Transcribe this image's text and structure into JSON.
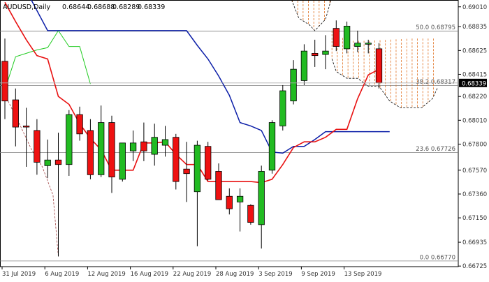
{
  "chart_data": {
    "type": "candlestick",
    "title": "AUDUSD,Daily",
    "ohlc_header": [
      "0.68644",
      "0.68688",
      "0.68289",
      "0.68339"
    ],
    "ylim": [
      0.6672,
      0.6907
    ],
    "y_ticks": [
      0.6901,
      0.68835,
      0.68625,
      0.68415,
      0.6822,
      0.6801,
      0.678,
      0.6757,
      0.6736,
      0.6715,
      0.66935,
      0.66725
    ],
    "y_tick_labels": [
      "0.69010",
      "0.68835",
      "0.68625",
      "0.68415",
      "0.68220",
      "0.68010",
      "0.67800",
      "0.67570",
      "0.67360",
      "0.67150",
      "0.66935",
      "0.66725"
    ],
    "x_tick_labels": [
      {
        "label": "31 Jul 2019",
        "index": 0
      },
      {
        "label": "6 Aug 2019",
        "index": 4
      },
      {
        "label": "12 Aug 2019",
        "index": 8
      },
      {
        "label": "16 Aug 2019",
        "index": 12
      },
      {
        "label": "22 Aug 2019",
        "index": 16
      },
      {
        "label": "28 Aug 2019",
        "index": 20
      },
      {
        "label": "3 Sep 2019",
        "index": 24
      },
      {
        "label": "9 Sep 2019",
        "index": 28
      },
      {
        "label": "13 Sep 2019",
        "index": 32
      }
    ],
    "candles": [
      {
        "o": 0.6853,
        "h": 0.6873,
        "l": 0.6802,
        "c": 0.6818
      },
      {
        "o": 0.6819,
        "h": 0.6829,
        "l": 0.6778,
        "c": 0.6795
      },
      {
        "o": 0.6796,
        "h": 0.6812,
        "l": 0.676,
        "c": 0.6795
      },
      {
        "o": 0.6792,
        "h": 0.6802,
        "l": 0.6753,
        "c": 0.6764
      },
      {
        "o": 0.6761,
        "h": 0.6784,
        "l": 0.675,
        "c": 0.6766
      },
      {
        "o": 0.6766,
        "h": 0.679,
        "l": 0.6681,
        "c": 0.6762
      },
      {
        "o": 0.6762,
        "h": 0.681,
        "l": 0.6752,
        "c": 0.6806
      },
      {
        "o": 0.6806,
        "h": 0.6813,
        "l": 0.6783,
        "c": 0.6789
      },
      {
        "o": 0.6792,
        "h": 0.6802,
        "l": 0.6749,
        "c": 0.6753
      },
      {
        "o": 0.6753,
        "h": 0.6814,
        "l": 0.6751,
        "c": 0.6799
      },
      {
        "o": 0.6799,
        "h": 0.6805,
        "l": 0.6737,
        "c": 0.6751
      },
      {
        "o": 0.6749,
        "h": 0.678,
        "l": 0.6747,
        "c": 0.6781
      },
      {
        "o": 0.6774,
        "h": 0.6792,
        "l": 0.6765,
        "c": 0.6781
      },
      {
        "o": 0.6782,
        "h": 0.6799,
        "l": 0.6765,
        "c": 0.6774
      },
      {
        "o": 0.6771,
        "h": 0.6798,
        "l": 0.6761,
        "c": 0.6786
      },
      {
        "o": 0.6779,
        "h": 0.6796,
        "l": 0.6769,
        "c": 0.6784
      },
      {
        "o": 0.6786,
        "h": 0.6789,
        "l": 0.674,
        "c": 0.6747
      },
      {
        "o": 0.6758,
        "h": 0.6782,
        "l": 0.6729,
        "c": 0.6754
      },
      {
        "o": 0.6738,
        "h": 0.6783,
        "l": 0.669,
        "c": 0.6779
      },
      {
        "o": 0.6778,
        "h": 0.6782,
        "l": 0.6748,
        "c": 0.6749
      },
      {
        "o": 0.6756,
        "h": 0.6763,
        "l": 0.6731,
        "c": 0.6731
      },
      {
        "o": 0.6734,
        "h": 0.6741,
        "l": 0.6718,
        "c": 0.6723
      },
      {
        "o": 0.6729,
        "h": 0.6741,
        "l": 0.6703,
        "c": 0.6734
      },
      {
        "o": 0.6726,
        "h": 0.6727,
        "l": 0.6709,
        "c": 0.6711
      },
      {
        "o": 0.6709,
        "h": 0.6761,
        "l": 0.6688,
        "c": 0.6756
      },
      {
        "o": 0.6757,
        "h": 0.6801,
        "l": 0.6754,
        "c": 0.6799
      },
      {
        "o": 0.6796,
        "h": 0.6832,
        "l": 0.6792,
        "c": 0.6827
      },
      {
        "o": 0.6818,
        "h": 0.6854,
        "l": 0.6815,
        "c": 0.6846
      },
      {
        "o": 0.6836,
        "h": 0.6868,
        "l": 0.6832,
        "c": 0.6862
      },
      {
        "o": 0.686,
        "h": 0.6872,
        "l": 0.6848,
        "c": 0.6858
      },
      {
        "o": 0.6859,
        "h": 0.6876,
        "l": 0.6846,
        "c": 0.6862
      },
      {
        "o": 0.6882,
        "h": 0.6889,
        "l": 0.6862,
        "c": 0.6866
      },
      {
        "o": 0.6864,
        "h": 0.6888,
        "l": 0.686,
        "c": 0.6884
      },
      {
        "o": 0.6866,
        "h": 0.688,
        "l": 0.6861,
        "c": 0.6869
      },
      {
        "o": 0.6868,
        "h": 0.6872,
        "l": 0.686,
        "c": 0.6869
      },
      {
        "o": 0.6864,
        "h": 0.6869,
        "l": 0.6829,
        "c": 0.6834
      }
    ],
    "red_line": [
      {
        "i": 0,
        "y": 0.6905
      },
      {
        "i": 1,
        "y": 0.6888
      },
      {
        "i": 2,
        "y": 0.6872
      },
      {
        "i": 3,
        "y": 0.6858
      },
      {
        "i": 4,
        "y": 0.6855
      },
      {
        "i": 5,
        "y": 0.6822
      },
      {
        "i": 6,
        "y": 0.6815
      },
      {
        "i": 7,
        "y": 0.6798
      },
      {
        "i": 8,
        "y": 0.6785
      },
      {
        "i": 9,
        "y": 0.6775
      },
      {
        "i": 10,
        "y": 0.6757
      },
      {
        "i": 11,
        "y": 0.6757
      },
      {
        "i": 12,
        "y": 0.6757
      },
      {
        "i": 13,
        "y": 0.6781
      },
      {
        "i": 14,
        "y": 0.6781
      },
      {
        "i": 15,
        "y": 0.6782
      },
      {
        "i": 16,
        "y": 0.6771
      },
      {
        "i": 17,
        "y": 0.6762
      },
      {
        "i": 18,
        "y": 0.6762
      },
      {
        "i": 19,
        "y": 0.6747
      },
      {
        "i": 20,
        "y": 0.6747
      },
      {
        "i": 21,
        "y": 0.6747
      },
      {
        "i": 22,
        "y": 0.6747
      },
      {
        "i": 23,
        "y": 0.6747
      },
      {
        "i": 24,
        "y": 0.6746
      },
      {
        "i": 25,
        "y": 0.6749
      },
      {
        "i": 26,
        "y": 0.6762
      },
      {
        "i": 27,
        "y": 0.6777
      },
      {
        "i": 28,
        "y": 0.6782
      },
      {
        "i": 29,
        "y": 0.6782
      },
      {
        "i": 30,
        "y": 0.6786
      },
      {
        "i": 31,
        "y": 0.6793
      },
      {
        "i": 32,
        "y": 0.6793
      },
      {
        "i": 33,
        "y": 0.682
      },
      {
        "i": 34,
        "y": 0.6841
      },
      {
        "i": 35,
        "y": 0.6846
      }
    ],
    "blue_line": [
      {
        "i": 2.3,
        "y": 0.691
      },
      {
        "i": 4,
        "y": 0.688
      },
      {
        "i": 8,
        "y": 0.688
      },
      {
        "i": 12,
        "y": 0.688
      },
      {
        "i": 16,
        "y": 0.688
      },
      {
        "i": 17,
        "y": 0.688
      },
      {
        "i": 18,
        "y": 0.6867
      },
      {
        "i": 19,
        "y": 0.6855
      },
      {
        "i": 20,
        "y": 0.684
      },
      {
        "i": 21,
        "y": 0.6823
      },
      {
        "i": 22,
        "y": 0.6799
      },
      {
        "i": 23,
        "y": 0.6796
      },
      {
        "i": 24,
        "y": 0.6792
      },
      {
        "i": 25,
        "y": 0.6773
      },
      {
        "i": 26,
        "y": 0.6772
      },
      {
        "i": 27,
        "y": 0.6778
      },
      {
        "i": 28,
        "y": 0.6778
      },
      {
        "i": 29,
        "y": 0.6784
      },
      {
        "i": 30,
        "y": 0.6791
      },
      {
        "i": 31,
        "y": 0.6791
      },
      {
        "i": 32,
        "y": 0.6791
      },
      {
        "i": 33,
        "y": 0.6791
      },
      {
        "i": 34,
        "y": 0.6791
      },
      {
        "i": 35,
        "y": 0.6791
      },
      {
        "i": 36,
        "y": 0.6791
      }
    ],
    "green_line": [
      {
        "i": -0.2,
        "y": 0.6822
      },
      {
        "i": 1,
        "y": 0.6857
      },
      {
        "i": 2,
        "y": 0.686
      },
      {
        "i": 3,
        "y": 0.6863
      },
      {
        "i": 4,
        "y": 0.6865
      },
      {
        "i": 5,
        "y": 0.688
      },
      {
        "i": 6,
        "y": 0.6866
      },
      {
        "i": 7,
        "y": 0.6866
      },
      {
        "i": 8,
        "y": 0.6833
      }
    ],
    "cloud_upper": [
      {
        "i": 26.7,
        "y": 0.691
      },
      {
        "i": 27.5,
        "y": 0.6891
      },
      {
        "i": 28.5,
        "y": 0.6885
      },
      {
        "i": 29,
        "y": 0.688
      },
      {
        "i": 30,
        "y": 0.689
      },
      {
        "i": 30.6,
        "y": 0.691
      }
    ],
    "cloud_lower": [
      {
        "i": 30.6,
        "y": 0.6855
      },
      {
        "i": 31,
        "y": 0.6844
      },
      {
        "i": 32,
        "y": 0.6838
      },
      {
        "i": 33,
        "y": 0.6838
      },
      {
        "i": 34,
        "y": 0.6831
      },
      {
        "i": 35,
        "y": 0.6831
      },
      {
        "i": 36,
        "y": 0.6818
      },
      {
        "i": 37,
        "y": 0.6812
      },
      {
        "i": 38,
        "y": 0.6812
      },
      {
        "i": 39,
        "y": 0.6812
      },
      {
        "i": 40,
        "y": 0.682
      },
      {
        "i": 40.5,
        "y": 0.683
      }
    ],
    "cloud_right_upper": [
      {
        "i": 30.6,
        "y": 0.688
      },
      {
        "i": 32,
        "y": 0.6871
      },
      {
        "i": 34,
        "y": 0.6871
      },
      {
        "i": 36,
        "y": 0.6872
      },
      {
        "i": 38,
        "y": 0.6873
      },
      {
        "i": 40.5,
        "y": 0.6873
      }
    ],
    "cloud_hatch": {
      "from": 30.6,
      "to": 40.5
    },
    "left_dashed_line": [
      {
        "i": 0.3,
        "y": 0.6818
      },
      {
        "i": 1.5,
        "y": 0.6795
      },
      {
        "i": 2.5,
        "y": 0.6775
      },
      {
        "i": 3.5,
        "y": 0.676
      },
      {
        "i": 4.5,
        "y": 0.6735
      },
      {
        "i": 5,
        "y": 0.6681
      }
    ],
    "fib_levels": [
      {
        "label": "50.0 0.68795",
        "value": 0.68795
      },
      {
        "label": "38.2 0.68317",
        "value": 0.68317
      },
      {
        "label": "23.6 0.67726",
        "value": 0.67726
      },
      {
        "label": "0.0 0.66770",
        "value": 0.6677
      }
    ],
    "current_price": {
      "label": "0.68339",
      "value": 0.68339
    },
    "colors": {
      "bull": "#22bb22",
      "bear": "#ee1111",
      "wick": "#000000",
      "red_line": "#e81010",
      "blue_line": "#0b1ea8",
      "green_line": "#22cc22",
      "cloud": "#e07020",
      "fib": "#808080",
      "grid_text": "#333333"
    }
  }
}
